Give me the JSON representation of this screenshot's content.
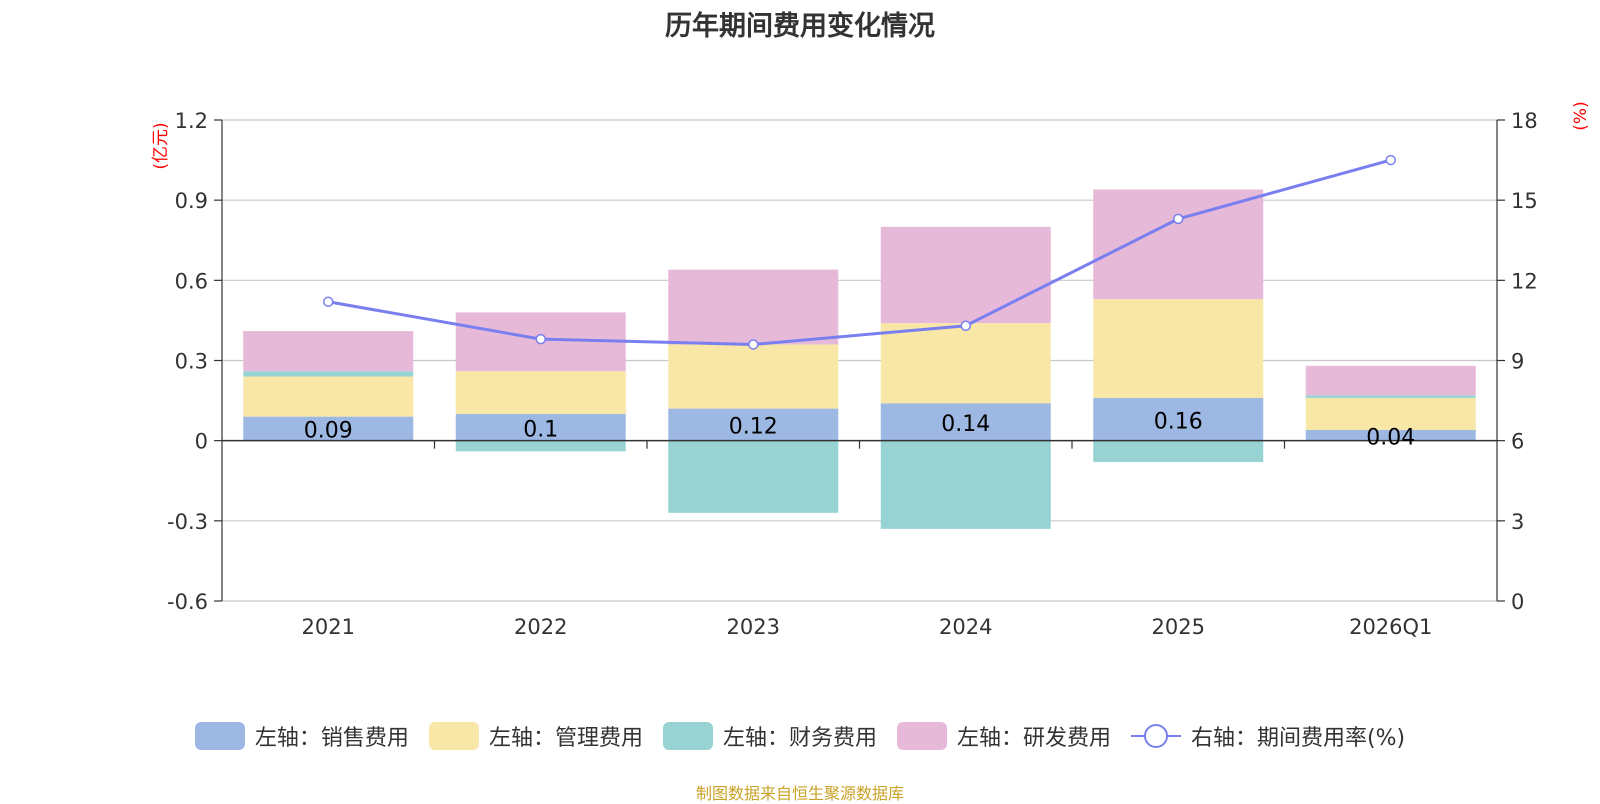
{
  "chart_data": {
    "type": "bar",
    "title": "历年期间费用变化情况",
    "categories": [
      "2021",
      "2022",
      "2023",
      "2024",
      "2025",
      "2026Q1"
    ],
    "left_axis": {
      "unit": "(亿元)",
      "ylim": [
        -0.6,
        1.2
      ],
      "ticks": [
        "1.2",
        "0.9",
        "0.6",
        "0.3",
        "0",
        "-0.3",
        "-0.6"
      ],
      "tick_values": [
        1.2,
        0.9,
        0.6,
        0.3,
        0,
        -0.3,
        -0.6
      ]
    },
    "right_axis": {
      "unit": "(%)",
      "ylim": [
        0,
        18
      ],
      "ticks": [
        "18",
        "15",
        "12",
        "9",
        "6",
        "3",
        "0"
      ],
      "tick_values": [
        18,
        15,
        12,
        9,
        6,
        3,
        0
      ]
    },
    "series": [
      {
        "name": "左轴：销售费用",
        "color": "#9db8e2",
        "values": [
          0.09,
          0.1,
          0.12,
          0.14,
          0.16,
          0.04
        ],
        "labels": [
          "0.09",
          "0.1",
          "0.12",
          "0.14",
          "0.16",
          "0.04"
        ]
      },
      {
        "name": "左轴：管理费用",
        "color": "#f8e7a7",
        "values": [
          0.15,
          0.16,
          0.24,
          0.3,
          0.37,
          0.12
        ]
      },
      {
        "name": "左轴：财务费用",
        "color": "#98d3d3",
        "values": [
          0.02,
          -0.04,
          -0.27,
          -0.33,
          -0.08,
          0.01
        ]
      },
      {
        "name": "左轴：研发费用",
        "color": "#e7b9d9",
        "values": [
          0.15,
          0.22,
          0.28,
          0.36,
          0.41,
          0.11
        ]
      }
    ],
    "line_series": {
      "name": "右轴：期间费用率(%)",
      "color": "#7a7ff0",
      "values": [
        11.2,
        9.8,
        9.6,
        10.3,
        14.3,
        16.5
      ]
    },
    "grid": true,
    "legend_position": "bottom"
  },
  "source": "制图数据来自恒生聚源数据库"
}
